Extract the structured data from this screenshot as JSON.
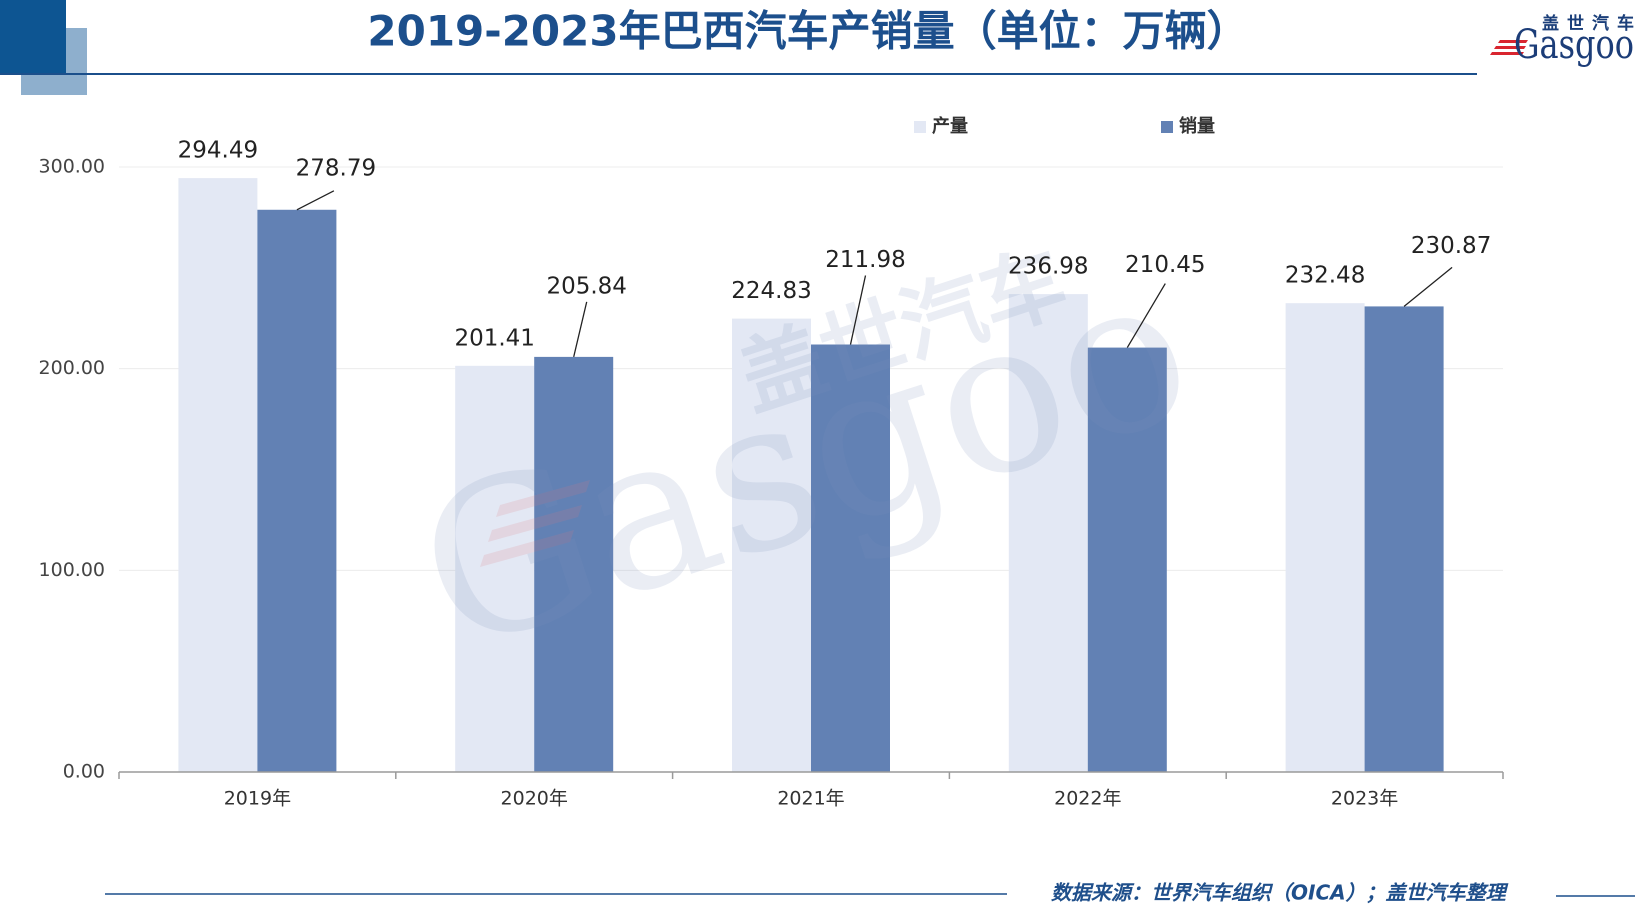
{
  "logo": {
    "cn": "盖世汽车",
    "en": "Gasgoo"
  },
  "watermark": {
    "cn": "盖世汽车",
    "en": "Gasgoo"
  },
  "colors": {
    "accent": "#1b4f8b",
    "accent_light": "#8eafcd",
    "production": "#e3e8f4",
    "sales": "#6281b4",
    "logo_red": "#d9252f"
  },
  "chart_data": {
    "type": "bar",
    "title": "2019-2023年巴西汽车产销量（单位：万辆）",
    "categories": [
      "2019年",
      "2020年",
      "2021年",
      "2022年",
      "2023年"
    ],
    "series": [
      {
        "name": "产量",
        "values": [
          294.49,
          201.41,
          224.83,
          236.98,
          232.48
        ]
      },
      {
        "name": "销量",
        "values": [
          278.79,
          205.84,
          211.98,
          210.45,
          230.87
        ]
      }
    ],
    "yticks": [
      "0.00",
      "100.00",
      "200.00",
      "300.00"
    ],
    "ylim": [
      0,
      300
    ],
    "xlabel": "",
    "ylabel": "",
    "grid": true,
    "legend_position": "top-right"
  },
  "footer": {
    "source": "数据来源：世界汽车组织（OICA）；盖世汽车整理"
  }
}
